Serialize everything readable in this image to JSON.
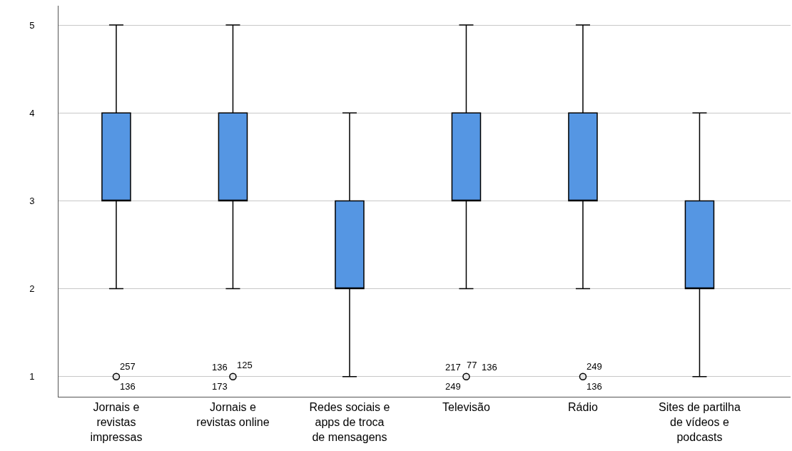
{
  "chart_data": {
    "type": "box",
    "categories": [
      "Jornais e revistas impressas",
      "Jornais e revistas online",
      "Redes sociais e apps de troca de mensagens",
      "Televisão",
      "Rádio",
      "Sites de partilha de vídeos e podcasts"
    ],
    "series": [
      {
        "color": "#5596e3",
        "boxes": [
          {
            "low": 2,
            "q1": 3,
            "median": 3,
            "q3": 4,
            "high": 5
          },
          {
            "low": 2,
            "q1": 3,
            "median": 3,
            "q3": 4,
            "high": 5
          },
          {
            "low": 1,
            "q1": 2,
            "median": 2,
            "q3": 3,
            "high": 4
          },
          {
            "low": 2,
            "q1": 3,
            "median": 3,
            "q3": 4,
            "high": 5
          },
          {
            "low": 2,
            "q1": 3,
            "median": 3,
            "q3": 4,
            "high": 5
          },
          {
            "low": 1,
            "q1": 2,
            "median": 2,
            "q3": 3,
            "high": 4
          }
        ]
      },
      {
        "type": "scatter",
        "color": "#000000",
        "x": [
          "Jornais e revistas impressas",
          "Jornais e revistas online",
          "Televisão",
          "Rádio"
        ],
        "values": [
          1,
          1,
          1,
          1
        ]
      }
    ],
    "marker": "circle",
    "ylim": [
      0.77,
      5.22
    ],
    "yticks": [
      1,
      2,
      3,
      4,
      5
    ],
    "grid": "y",
    "annotations": [
      {
        "text": "257",
        "x": "Jornais e revistas impressas",
        "y": 1
      },
      {
        "text": "136",
        "x": "Jornais e revistas impressas",
        "y": 1
      },
      {
        "text": "136",
        "x": "Jornais e revistas online",
        "y": 1
      },
      {
        "text": "125",
        "x": "Jornais e revistas online",
        "y": 1
      },
      {
        "text": "173",
        "x": "Jornais e revistas online",
        "y": 1
      },
      {
        "text": "217",
        "x": "Televisão",
        "y": 1
      },
      {
        "text": "77",
        "x": "Televisão",
        "y": 1
      },
      {
        "text": "136",
        "x": "Televisão",
        "y": 1
      },
      {
        "text": "249",
        "x": "Televisão",
        "y": 1
      },
      {
        "text": "249",
        "x": "Rádio",
        "y": 1
      },
      {
        "text": "136",
        "x": "Rádio",
        "y": 1
      }
    ]
  }
}
